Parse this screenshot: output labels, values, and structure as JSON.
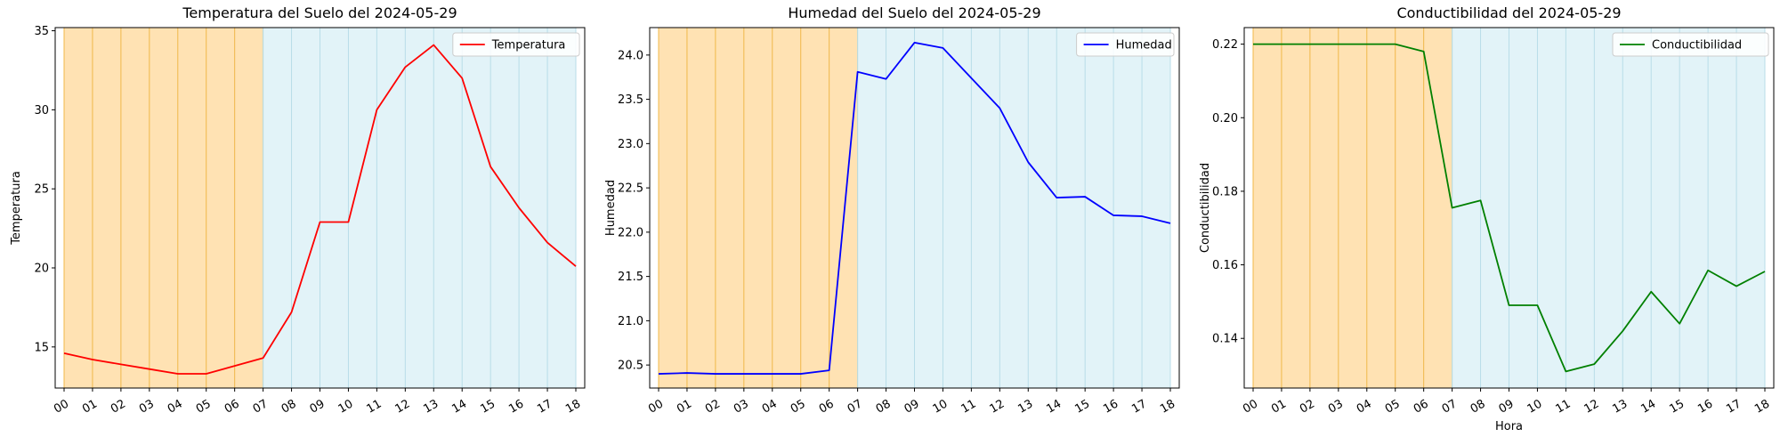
{
  "colors": {
    "night_band": "#ffd89a",
    "night_line": "#f0b84a",
    "day_band": "#d6eef5",
    "day_line": "#b8dde8"
  },
  "chart_data": [
    {
      "type": "line",
      "title": "Temperatura del Suelo del 2024-05-29",
      "xlabel": "",
      "ylabel": "Temperatura",
      "categories": [
        "00",
        "01",
        "02",
        "03",
        "04",
        "05",
        "06",
        "07",
        "08",
        "09",
        "10",
        "11",
        "12",
        "13",
        "14",
        "15",
        "16",
        "17",
        "18"
      ],
      "series": [
        {
          "name": "Temperatura",
          "color": "#ff0000",
          "values": [
            14.6,
            14.2,
            13.9,
            13.6,
            13.3,
            13.3,
            13.8,
            14.3,
            17.2,
            22.9,
            22.9,
            30.0,
            32.7,
            34.1,
            32.0,
            26.4,
            23.8,
            21.6,
            20.1
          ]
        }
      ],
      "ylim": [
        12.4,
        35.2
      ],
      "yticks": [
        15,
        20,
        25,
        30,
        35
      ],
      "ytick_labels": [
        "15",
        "20",
        "25",
        "30",
        "35"
      ],
      "legend": "top-right",
      "shaded_bands": [
        {
          "label": "night",
          "from": "00",
          "to": "07"
        },
        {
          "label": "day",
          "from": "07",
          "to": "18"
        }
      ]
    },
    {
      "type": "line",
      "title": "Humedad del Suelo del 2024-05-29",
      "xlabel": "",
      "ylabel": "Humedad",
      "categories": [
        "00",
        "01",
        "02",
        "03",
        "04",
        "05",
        "06",
        "07",
        "08",
        "09",
        "10",
        "11",
        "12",
        "13",
        "14",
        "15",
        "16",
        "17",
        "18"
      ],
      "series": [
        {
          "name": "Humedad",
          "color": "#0000ff",
          "values": [
            20.4,
            20.41,
            20.4,
            20.4,
            20.4,
            20.4,
            20.44,
            23.81,
            23.73,
            24.14,
            24.08,
            23.74,
            23.4,
            22.79,
            22.39,
            22.4,
            22.19,
            22.18,
            22.1
          ]
        }
      ],
      "ylim": [
        20.24,
        24.31
      ],
      "yticks": [
        20.5,
        21.0,
        21.5,
        22.0,
        22.5,
        23.0,
        23.5,
        24.0
      ],
      "ytick_labels": [
        "20.5",
        "21.0",
        "21.5",
        "22.0",
        "22.5",
        "23.0",
        "23.5",
        "24.0"
      ],
      "legend": "top-right",
      "shaded_bands": [
        {
          "label": "night",
          "from": "00",
          "to": "07"
        },
        {
          "label": "day",
          "from": "07",
          "to": "18"
        }
      ]
    },
    {
      "type": "line",
      "title": "Conductibilidad del 2024-05-29",
      "xlabel": "Hora",
      "ylabel": "Conductibilidad",
      "categories": [
        "00",
        "01",
        "02",
        "03",
        "04",
        "05",
        "06",
        "07",
        "08",
        "09",
        "10",
        "11",
        "12",
        "13",
        "14",
        "15",
        "16",
        "17",
        "18"
      ],
      "series": [
        {
          "name": "Conductibilidad",
          "color": "#008000",
          "values": [
            0.22,
            0.22,
            0.22,
            0.22,
            0.22,
            0.22,
            0.218,
            0.1755,
            0.1775,
            0.149,
            0.149,
            0.131,
            0.133,
            0.142,
            0.1527,
            0.144,
            0.1585,
            0.1542,
            0.1582
          ]
        }
      ],
      "ylim": [
        0.1265,
        0.2245
      ],
      "yticks": [
        0.14,
        0.16,
        0.18,
        0.2,
        0.22
      ],
      "ytick_labels": [
        "0.14",
        "0.16",
        "0.18",
        "0.20",
        "0.22"
      ],
      "legend": "top-right",
      "shaded_bands": [
        {
          "label": "night",
          "from": "00",
          "to": "07"
        },
        {
          "label": "day",
          "from": "07",
          "to": "18"
        }
      ]
    }
  ]
}
